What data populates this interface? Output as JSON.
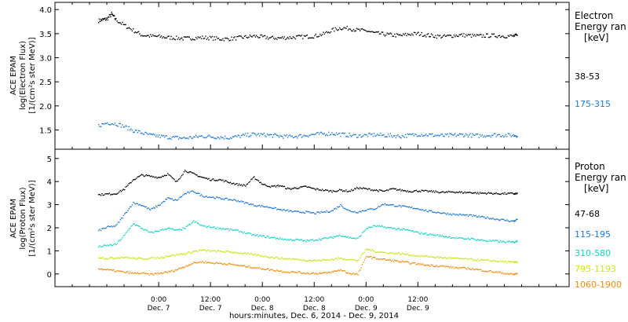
{
  "chart_data": [
    {
      "type": "scatter",
      "panel": "electron",
      "ylabel": [
        "ACE EPAM",
        "log(Electron Flux)",
        "[1/(cm²s ster MeV)]"
      ],
      "ylim": [
        1.1,
        4.15
      ],
      "yticks": [
        "1.5",
        "2.0",
        "2.5",
        "3.0",
        "3.5",
        "4.0"
      ],
      "legend_title": [
        "Electron",
        "Energy ran",
        "[keV]"
      ],
      "series": [
        {
          "name": "38-53",
          "color": "#000000",
          "x": [
            0,
            1,
            2,
            3,
            4,
            6,
            8,
            10,
            12,
            14,
            16,
            18,
            20,
            22,
            24,
            26,
            28,
            30,
            32,
            34,
            36,
            38,
            40,
            42,
            44,
            46,
            48,
            50,
            52,
            54,
            56,
            58,
            60,
            62,
            64,
            66,
            68,
            70,
            72,
            74,
            76,
            78,
            80,
            82,
            84,
            86,
            88,
            90,
            92,
            94,
            96,
            97
          ],
          "y": [
            3.78,
            3.8,
            3.82,
            3.92,
            3.8,
            3.68,
            3.58,
            3.48,
            3.46,
            3.45,
            3.43,
            3.42,
            3.41,
            3.42,
            3.43,
            3.42,
            3.4,
            3.4,
            3.42,
            3.44,
            3.46,
            3.44,
            3.42,
            3.42,
            3.43,
            3.44,
            3.45,
            3.46,
            3.5,
            3.58,
            3.63,
            3.62,
            3.58,
            3.57,
            3.52,
            3.5,
            3.48,
            3.47,
            3.5,
            3.51,
            3.48,
            3.46,
            3.45,
            3.47,
            3.48,
            3.47,
            3.46,
            3.47,
            3.47,
            3.46,
            3.46,
            3.47
          ]
        },
        {
          "name": "175-315",
          "color": "#1f77d4",
          "x": [
            0,
            2,
            4,
            6,
            8,
            10,
            12,
            14,
            16,
            18,
            20,
            22,
            24,
            26,
            28,
            30,
            32,
            34,
            36,
            38,
            40,
            42,
            44,
            46,
            48,
            50,
            52,
            54,
            56,
            58,
            60,
            62,
            64,
            66,
            68,
            70,
            72,
            74,
            76,
            78,
            80,
            82,
            84,
            86,
            88,
            90,
            92,
            94,
            96,
            97
          ],
          "y": [
            1.6,
            1.66,
            1.64,
            1.58,
            1.5,
            1.45,
            1.4,
            1.38,
            1.36,
            1.35,
            1.34,
            1.36,
            1.38,
            1.37,
            1.36,
            1.35,
            1.37,
            1.4,
            1.42,
            1.41,
            1.4,
            1.38,
            1.37,
            1.38,
            1.4,
            1.42,
            1.43,
            1.44,
            1.42,
            1.4,
            1.39,
            1.4,
            1.41,
            1.4,
            1.39,
            1.38,
            1.4,
            1.42,
            1.41,
            1.4,
            1.39,
            1.4,
            1.41,
            1.4,
            1.39,
            1.4,
            1.41,
            1.4,
            1.4,
            1.4
          ]
        }
      ]
    },
    {
      "type": "scatter",
      "panel": "proton",
      "ylabel": [
        "ACE EPAM",
        "log(Proton Flux)",
        "[1/(cm²s ster MeV)]"
      ],
      "ylim": [
        -0.55,
        5.4
      ],
      "yticks": [
        "0",
        "1",
        "2",
        "3",
        "4",
        "5"
      ],
      "legend_title": [
        "Proton",
        "Energy ran",
        "[keV]"
      ],
      "series": [
        {
          "name": "47-68",
          "color": "#000000",
          "x": [
            0,
            2,
            4,
            6,
            8,
            10,
            12,
            14,
            16,
            18,
            20,
            22,
            24,
            26,
            28,
            30,
            32,
            34,
            36,
            38,
            40,
            42,
            44,
            46,
            48,
            50,
            52,
            54,
            56,
            58,
            60,
            62,
            64,
            66,
            68,
            70,
            72,
            74,
            76,
            78,
            80,
            82,
            84,
            86,
            88,
            90,
            92,
            94,
            96,
            97
          ],
          "y": [
            3.45,
            3.48,
            3.5,
            3.7,
            4.1,
            4.3,
            4.25,
            4.2,
            4.35,
            4.0,
            4.5,
            4.35,
            4.2,
            4.1,
            4.1,
            4.0,
            3.9,
            3.85,
            4.2,
            3.9,
            3.8,
            3.85,
            3.7,
            3.75,
            3.8,
            3.7,
            3.65,
            3.6,
            3.65,
            3.6,
            3.75,
            3.7,
            3.65,
            3.6,
            3.7,
            3.65,
            3.6,
            3.62,
            3.6,
            3.58,
            3.55,
            3.58,
            3.55,
            3.55,
            3.52,
            3.52,
            3.5,
            3.5,
            3.5,
            3.5
          ]
        },
        {
          "name": "115-195",
          "color": "#1f77d4",
          "x": [
            0,
            2,
            4,
            6,
            8,
            10,
            12,
            14,
            16,
            18,
            20,
            22,
            24,
            26,
            28,
            30,
            32,
            34,
            36,
            38,
            40,
            42,
            44,
            46,
            48,
            50,
            52,
            54,
            56,
            58,
            60,
            62,
            64,
            66,
            68,
            70,
            72,
            74,
            76,
            78,
            80,
            82,
            84,
            86,
            88,
            90,
            92,
            94,
            96,
            97
          ],
          "y": [
            1.9,
            2.05,
            2.1,
            2.6,
            3.1,
            3.0,
            2.8,
            3.0,
            3.3,
            3.2,
            3.5,
            3.6,
            3.4,
            3.35,
            3.3,
            3.25,
            3.2,
            3.1,
            3.0,
            2.95,
            2.9,
            2.8,
            2.75,
            2.7,
            2.7,
            2.65,
            2.7,
            2.75,
            3.0,
            2.75,
            2.7,
            2.8,
            2.85,
            3.05,
            3.0,
            2.95,
            2.9,
            2.85,
            2.75,
            2.7,
            2.65,
            2.6,
            2.58,
            2.55,
            2.5,
            2.45,
            2.4,
            2.35,
            2.3,
            2.4
          ]
        },
        {
          "name": "310-580",
          "color": "#17d3c8",
          "x": [
            0,
            2,
            4,
            6,
            8,
            10,
            12,
            14,
            16,
            18,
            20,
            22,
            24,
            26,
            28,
            30,
            32,
            34,
            36,
            38,
            40,
            42,
            44,
            46,
            48,
            50,
            52,
            54,
            56,
            58,
            60,
            62,
            64,
            66,
            68,
            70,
            72,
            74,
            76,
            78,
            80,
            82,
            84,
            86,
            88,
            90,
            92,
            94,
            96,
            97
          ],
          "y": [
            1.2,
            1.25,
            1.3,
            1.7,
            2.2,
            2.0,
            1.8,
            1.9,
            2.0,
            1.9,
            2.0,
            2.3,
            2.1,
            2.05,
            2.0,
            1.95,
            1.9,
            1.8,
            1.7,
            1.65,
            1.6,
            1.55,
            1.5,
            1.5,
            1.45,
            1.5,
            1.55,
            1.6,
            1.7,
            1.6,
            1.55,
            2.0,
            2.1,
            2.05,
            2.0,
            1.95,
            1.9,
            1.8,
            1.75,
            1.7,
            1.65,
            1.6,
            1.55,
            1.55,
            1.5,
            1.45,
            1.45,
            1.4,
            1.4,
            1.45
          ]
        },
        {
          "name": "795-1193",
          "color": "#c8e61a",
          "x": [
            0,
            2,
            4,
            6,
            8,
            10,
            12,
            14,
            16,
            18,
            20,
            22,
            24,
            26,
            28,
            30,
            32,
            34,
            36,
            38,
            40,
            42,
            44,
            46,
            48,
            50,
            52,
            54,
            56,
            58,
            60,
            62,
            64,
            66,
            68,
            70,
            72,
            74,
            76,
            78,
            80,
            82,
            84,
            86,
            88,
            90,
            92,
            94,
            96,
            97
          ],
          "y": [
            0.75,
            0.7,
            0.72,
            0.75,
            0.7,
            0.68,
            0.7,
            0.72,
            0.8,
            0.85,
            0.9,
            1.0,
            1.05,
            1.02,
            1.0,
            0.98,
            0.95,
            0.9,
            0.85,
            0.8,
            0.75,
            0.7,
            0.68,
            0.65,
            0.62,
            0.6,
            0.62,
            0.65,
            0.7,
            0.65,
            0.6,
            1.1,
            1.0,
            0.95,
            0.92,
            0.9,
            0.85,
            0.8,
            0.78,
            0.75,
            0.72,
            0.7,
            0.68,
            0.65,
            0.62,
            0.6,
            0.58,
            0.55,
            0.52,
            0.55
          ]
        },
        {
          "name": "1060-1900",
          "color": "#f08c0a",
          "x": [
            0,
            2,
            4,
            6,
            8,
            10,
            12,
            14,
            16,
            18,
            20,
            22,
            24,
            26,
            28,
            30,
            32,
            34,
            36,
            38,
            40,
            42,
            44,
            46,
            48,
            50,
            52,
            54,
            56,
            58,
            60,
            62,
            64,
            66,
            68,
            70,
            72,
            74,
            76,
            78,
            80,
            82,
            84,
            86,
            88,
            90,
            92,
            94,
            96,
            97
          ],
          "y": [
            0.25,
            0.2,
            0.15,
            0.1,
            0.05,
            0.05,
            0.0,
            0.05,
            0.1,
            0.2,
            0.35,
            0.5,
            0.55,
            0.5,
            0.48,
            0.45,
            0.4,
            0.35,
            0.3,
            0.25,
            0.2,
            0.15,
            0.1,
            0.1,
            0.05,
            0.05,
            0.05,
            0.1,
            0.2,
            0.05,
            0.0,
            0.8,
            0.7,
            0.65,
            0.6,
            0.55,
            0.5,
            0.45,
            0.4,
            0.38,
            0.35,
            0.3,
            0.28,
            0.25,
            0.2,
            0.15,
            0.1,
            0.05,
            0.0,
            0.05
          ]
        }
      ]
    }
  ],
  "x_axis": {
    "label": "hours:minutes, Dec.  6, 2014 - Dec.  9, 2014",
    "range_hours": [
      -10,
      109
    ],
    "ticks": [
      {
        "h": 14,
        "time": "0:00",
        "date": "Dec. 7"
      },
      {
        "h": 26,
        "time": "12:00",
        "date": "Dec. 7"
      },
      {
        "h": 38,
        "time": "0:00",
        "date": "Dec. 8"
      },
      {
        "h": 50,
        "time": "12:00",
        "date": "Dec. 8"
      },
      {
        "h": 62,
        "time": "0:00",
        "date": "Dec. 9"
      },
      {
        "h": 74,
        "time": "12:00",
        "date": "Dec. 9"
      }
    ]
  }
}
